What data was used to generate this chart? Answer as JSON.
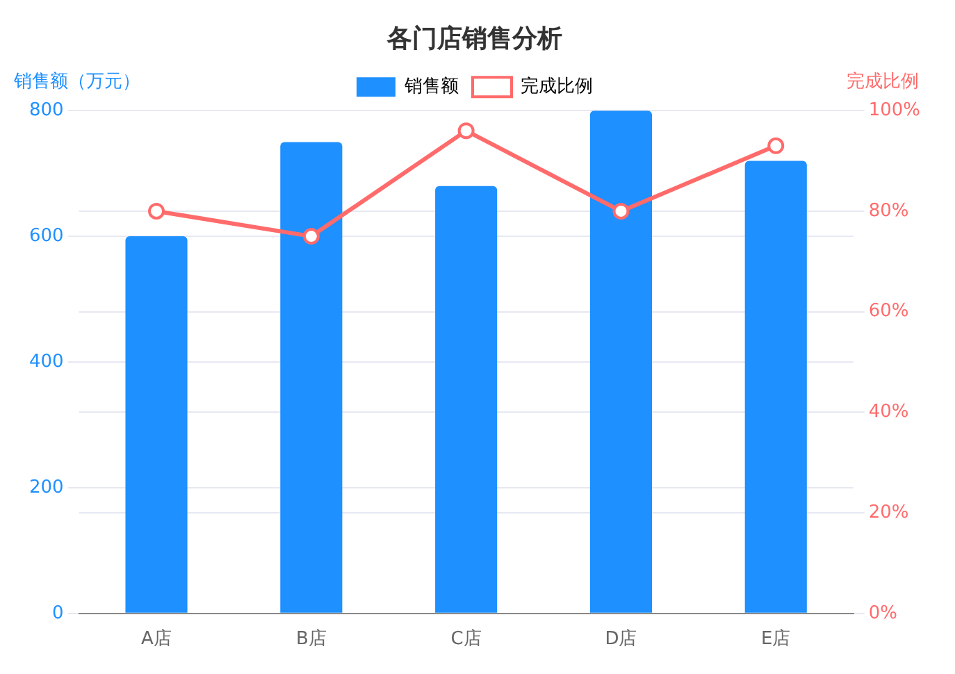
{
  "chart_data": {
    "type": "bar",
    "title": "各门店销售分析",
    "categories": [
      "A店",
      "B店",
      "C店",
      "D店",
      "E店"
    ],
    "series": [
      {
        "name": "销售额",
        "color": "#1e90ff",
        "values": [
          600,
          750,
          680,
          800,
          720
        ]
      },
      {
        "name": "完成比例",
        "type": "line",
        "axis": "y2",
        "color": "#ff6b6b",
        "values": [
          80,
          75,
          96,
          80,
          93
        ]
      }
    ],
    "ylabel": "销售额（万元）",
    "y2label": "完成比例",
    "ylim": [
      0,
      800
    ],
    "yticks": [
      0,
      200,
      400,
      600,
      800
    ],
    "y2lim": [
      0,
      100
    ],
    "y2ticks": [
      {
        "value": 0,
        "label": "0%"
      },
      {
        "value": 20,
        "label": "20%"
      },
      {
        "value": 40,
        "label": "40%"
      },
      {
        "value": 60,
        "label": "60%"
      },
      {
        "value": 80,
        "label": "80%"
      },
      {
        "value": 100,
        "label": "100%"
      }
    ],
    "grid": "y",
    "legend": "top",
    "marker": "circle",
    "line_style": "solid"
  }
}
